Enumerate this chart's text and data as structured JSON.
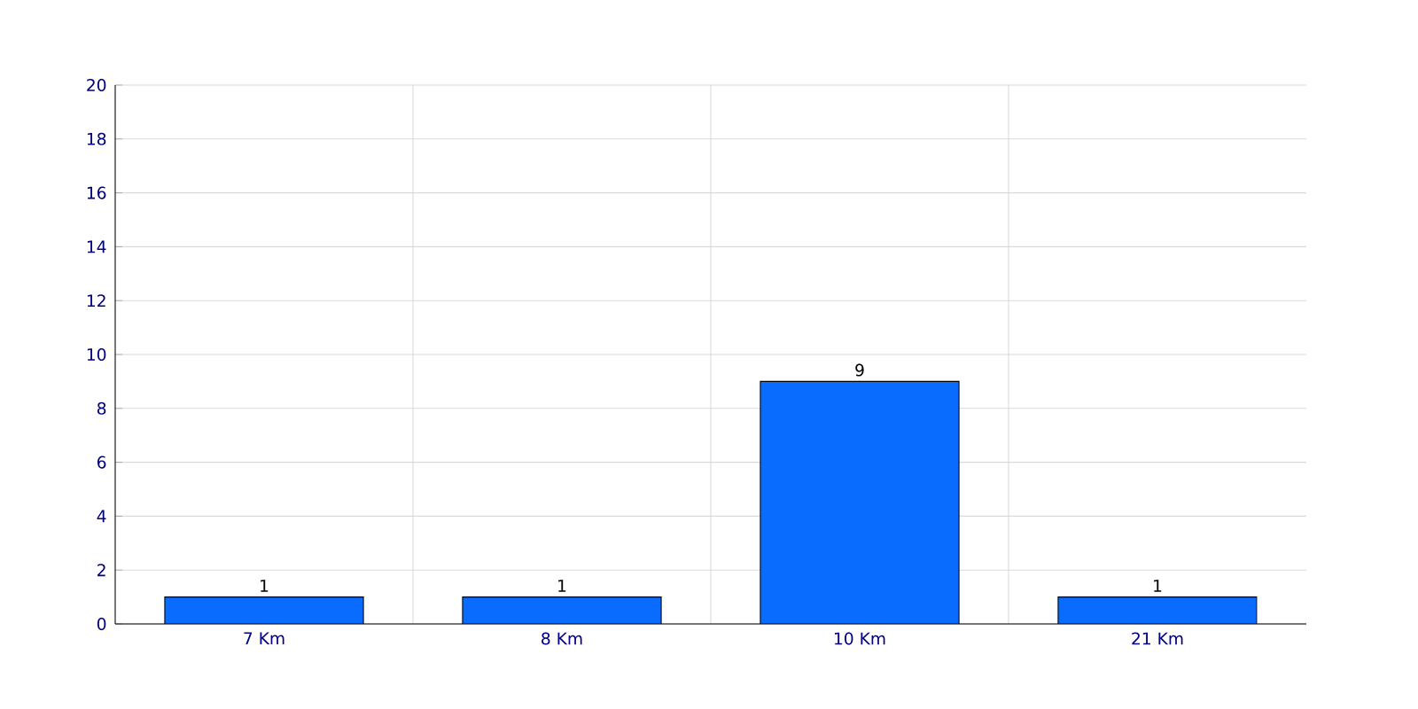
{
  "chart_data": {
    "type": "bar",
    "categories": [
      "7 Km",
      "8 Km",
      "10 Km",
      "21 Km"
    ],
    "values": [
      1,
      1,
      9,
      1
    ],
    "color": "#0a6cff",
    "ylim": [
      0,
      20
    ],
    "yticks": [
      0,
      2,
      4,
      6,
      8,
      10,
      12,
      14,
      16,
      18,
      20
    ],
    "grid": true,
    "data_labels": true
  }
}
